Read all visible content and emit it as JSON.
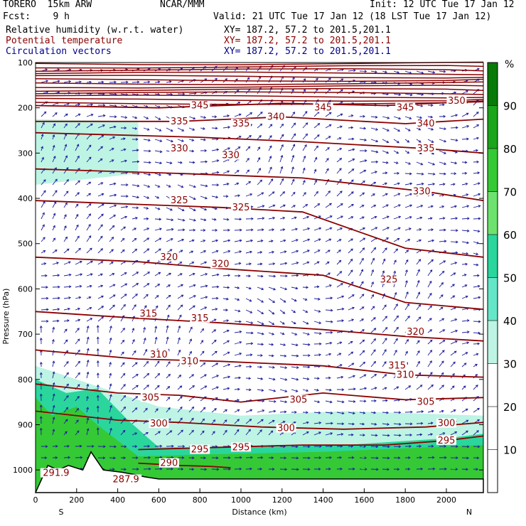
{
  "header": {
    "model": "TORERO  15km ARW",
    "center": "NCAR/MMM",
    "init": "Init: 12 UTC Tue 17 Jan 12",
    "fcst": "Fcst:    9 h",
    "valid": "Valid: 21 UTC Tue 17 Jan 12 (18 LST Tue 17 Jan 12)",
    "fields": [
      {
        "name": "Relative humidity (w.r.t. water)",
        "xy": "XY= 187.2, 57.2 to 201.5,201.1",
        "color": "#000000"
      },
      {
        "name": "Potential temperature",
        "xy": "XY= 187.2, 57.2 to 201.5,201.1",
        "color": "#8b0000"
      },
      {
        "name": "Circulation vectors",
        "xy": "XY= 187.2, 57.2 to 201.5,201.1",
        "color": "#00008b"
      }
    ]
  },
  "chart_data": {
    "type": "cross-section",
    "title": "Relative humidity, Potential temperature, Circulation vectors",
    "xlabel": "Distance (km)",
    "ylabel": "Pressure (hPa)",
    "xlim": [
      0,
      2180
    ],
    "ylim": [
      1050,
      100
    ],
    "x_ticks": [
      0,
      200,
      400,
      600,
      800,
      1000,
      1200,
      1400,
      1600,
      1800,
      2000
    ],
    "y_ticks": [
      100,
      200,
      300,
      400,
      500,
      600,
      700,
      800,
      900,
      1000
    ],
    "x_end_labels": {
      "left": "S",
      "right": "N"
    },
    "colorbar": {
      "unit": "%",
      "ticks": [
        10,
        20,
        30,
        40,
        50,
        60,
        70,
        80,
        90
      ],
      "levels": [
        30,
        40,
        50,
        60,
        70,
        80,
        90,
        100
      ],
      "colors": [
        "#ffffff",
        "#bdf4e4",
        "#66e6c8",
        "#2ad69c",
        "#6ee26e",
        "#35c935",
        "#1aa51a",
        "#087a08"
      ]
    },
    "theta_contours": [
      {
        "label": "345",
        "x": [
          0,
          600,
          1200,
          1700,
          2180
        ],
        "p": [
          195,
          200,
          190,
          195,
          185
        ]
      },
      {
        "label": "340",
        "x": [
          0,
          700,
          1200,
          1800,
          2180
        ],
        "p": [
          230,
          230,
          220,
          235,
          225
        ]
      },
      {
        "label": "335",
        "x": [
          0,
          800,
          1300,
          1900,
          2180
        ],
        "p": [
          255,
          265,
          275,
          290,
          300
        ]
      },
      {
        "label": "330",
        "x": [
          0,
          700,
          1300,
          1900,
          2180
        ],
        "p": [
          335,
          345,
          355,
          385,
          405
        ]
      },
      {
        "label": "325",
        "x": [
          0,
          600,
          900,
          1300,
          1800,
          2180
        ],
        "p": [
          405,
          415,
          420,
          430,
          510,
          530
        ]
      },
      {
        "label": "320",
        "x": [
          0,
          500,
          900,
          1400,
          1800,
          2180
        ],
        "p": [
          530,
          540,
          555,
          570,
          630,
          645
        ]
      },
      {
        "label": "315",
        "x": [
          0,
          500,
          900,
          1400,
          1800,
          2180
        ],
        "p": [
          650,
          665,
          675,
          690,
          705,
          715
        ]
      },
      {
        "label": "310",
        "x": [
          0,
          500,
          900,
          1400,
          1800,
          2180
        ],
        "p": [
          735,
          755,
          760,
          770,
          790,
          795
        ]
      },
      {
        "label": "305",
        "x": [
          0,
          400,
          700,
          1000,
          1400,
          1800,
          2180
        ],
        "p": [
          810,
          830,
          835,
          850,
          830,
          845,
          840
        ]
      },
      {
        "label": "300",
        "x": [
          0,
          400,
          700,
          1100,
          1500,
          1900,
          2180
        ],
        "p": [
          870,
          890,
          895,
          905,
          910,
          905,
          895
        ]
      },
      {
        "label": "295",
        "x": [
          500,
          900,
          1300,
          1700,
          2000,
          2180
        ],
        "p": [
          955,
          950,
          945,
          945,
          935,
          925
        ]
      },
      {
        "label": "290",
        "x": [
          500,
          700,
          850,
          950
        ],
        "p": [
          985,
          990,
          992,
          995
        ]
      }
    ],
    "theta_labels": [
      {
        "text": "345",
        "x": 800,
        "p": 195
      },
      {
        "text": "345",
        "x": 1400,
        "p": 200
      },
      {
        "text": "345",
        "x": 1800,
        "p": 200
      },
      {
        "text": "350",
        "x": 2050,
        "p": 185
      },
      {
        "text": "335",
        "x": 700,
        "p": 230
      },
      {
        "text": "335",
        "x": 1000,
        "p": 235
      },
      {
        "text": "340",
        "x": 1170,
        "p": 220
      },
      {
        "text": "340",
        "x": 1900,
        "p": 235
      },
      {
        "text": "330",
        "x": 700,
        "p": 290
      },
      {
        "text": "330",
        "x": 950,
        "p": 305
      },
      {
        "text": "335",
        "x": 1900,
        "p": 290
      },
      {
        "text": "325",
        "x": 700,
        "p": 405
      },
      {
        "text": "325",
        "x": 1000,
        "p": 420
      },
      {
        "text": "330",
        "x": 1880,
        "p": 385
      },
      {
        "text": "320",
        "x": 650,
        "p": 530
      },
      {
        "text": "320",
        "x": 900,
        "p": 545
      },
      {
        "text": "325",
        "x": 1720,
        "p": 580
      },
      {
        "text": "315",
        "x": 550,
        "p": 655
      },
      {
        "text": "315",
        "x": 800,
        "p": 665
      },
      {
        "text": "320",
        "x": 1850,
        "p": 695
      },
      {
        "text": "310",
        "x": 600,
        "p": 745
      },
      {
        "text": "310",
        "x": 750,
        "p": 760
      },
      {
        "text": "315",
        "x": 1760,
        "p": 770
      },
      {
        "text": "310",
        "x": 1800,
        "p": 790
      },
      {
        "text": "305",
        "x": 560,
        "p": 840
      },
      {
        "text": "305",
        "x": 1280,
        "p": 845
      },
      {
        "text": "305",
        "x": 1900,
        "p": 850
      },
      {
        "text": "300",
        "x": 600,
        "p": 898
      },
      {
        "text": "300",
        "x": 1220,
        "p": 908
      },
      {
        "text": "300",
        "x": 2000,
        "p": 897
      },
      {
        "text": "295",
        "x": 800,
        "p": 955
      },
      {
        "text": "295",
        "x": 1000,
        "p": 950
      },
      {
        "text": "295",
        "x": 2000,
        "p": 935
      },
      {
        "text": "290",
        "x": 650,
        "p": 985
      },
      {
        "text": "291.9",
        "x": 100,
        "p": 1007
      },
      {
        "text": "287.9",
        "x": 440,
        "p": 1021
      }
    ],
    "terrain": {
      "x": [
        0,
        60,
        110,
        160,
        230,
        270,
        330,
        420,
        480,
        530,
        600,
        2180
      ],
      "p": [
        1050,
        990,
        1000,
        990,
        1000,
        960,
        1000,
        1005,
        1010,
        1015,
        1020,
        1020
      ]
    },
    "humidity_regions": [
      {
        "level": 40,
        "x": [
          0,
          600,
          1000,
          1500,
          2180,
          2180,
          1800,
          1400,
          900,
          600,
          400,
          0
        ],
        "p": [
          770,
          860,
          880,
          870,
          880,
          1020,
          1020,
          1020,
          1020,
          1020,
          1020,
          1050
        ]
      },
      {
        "level": 40,
        "x": [
          0,
          500,
          500,
          0
        ],
        "p": [
          225,
          230,
          345,
          370
        ]
      },
      {
        "level": 60,
        "x": [
          0,
          150,
          300,
          450,
          600,
          1000,
          1500,
          2000,
          2180,
          2180,
          600,
          0
        ],
        "p": [
          800,
          830,
          820,
          890,
          950,
          950,
          945,
          930,
          920,
          1020,
          1020,
          1050
        ]
      },
      {
        "level": 80,
        "x": [
          0,
          80,
          200,
          300,
          500,
          900,
          1400,
          1900,
          2180,
          2180,
          600,
          0
        ],
        "p": [
          840,
          880,
          860,
          900,
          970,
          965,
          960,
          950,
          945,
          1020,
          1020,
          1050
        ]
      }
    ]
  }
}
